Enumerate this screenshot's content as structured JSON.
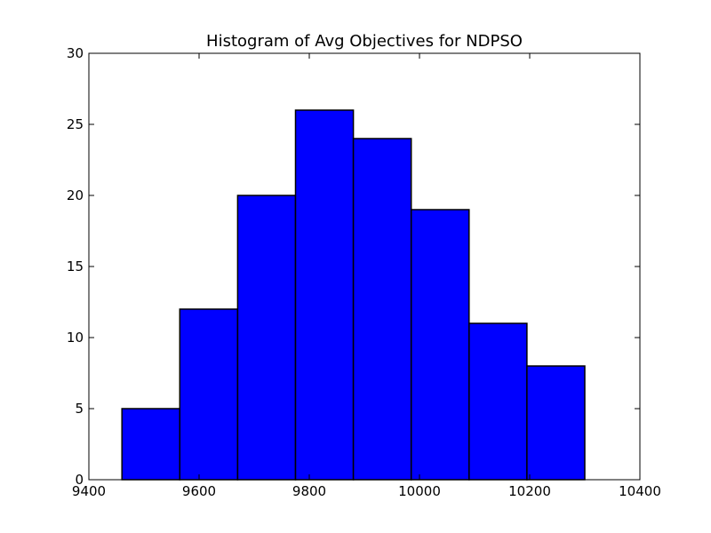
{
  "chart_data": {
    "type": "bar",
    "title": "Histogram of Avg Objectives for NDPSO",
    "xlabel": "",
    "ylabel": "",
    "xlim": [
      9400,
      10400
    ],
    "ylim": [
      0,
      30
    ],
    "xticks": [
      "9400",
      "9600",
      "9800",
      "10000",
      "10200",
      "10400"
    ],
    "yticks": [
      "0",
      "5",
      "10",
      "15",
      "20",
      "25",
      "30"
    ],
    "bin_edges": [
      9460,
      9565,
      9670,
      9775,
      9880,
      9985,
      10090,
      10195,
      10300
    ],
    "counts": [
      5,
      12,
      20,
      26,
      24,
      19,
      11,
      8
    ],
    "grid": false,
    "bar_color": "#0000ff",
    "edge_color": "#000000"
  }
}
